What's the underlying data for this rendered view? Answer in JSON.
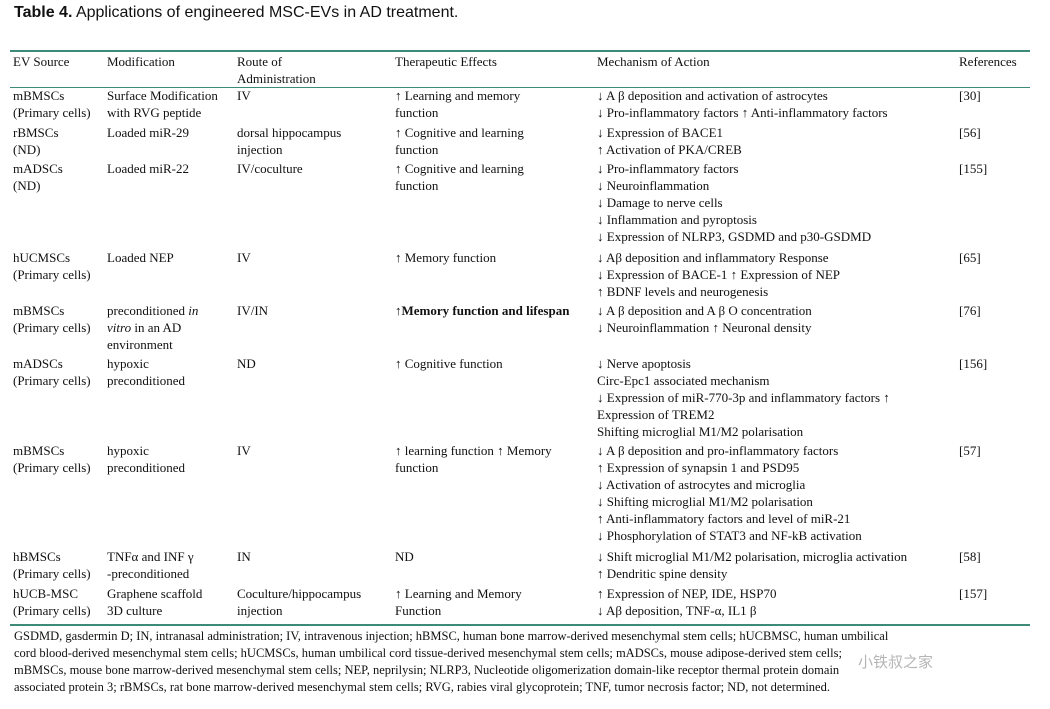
{
  "caption": {
    "label": "Table 4.",
    "text": "Applications of engineered MSC-EVs in AD treatment."
  },
  "headers": {
    "source": "EV Source",
    "modification": "Modification",
    "route": [
      "Route of",
      "Administration"
    ],
    "effects": "Therapeutic Effects",
    "mechanism": "Mechanism of Action",
    "references": "References"
  },
  "rows": [
    {
      "source": [
        "mBMSCs",
        "(Primary cells)"
      ],
      "modification": [
        "Surface Modification",
        "with RVG peptide"
      ],
      "route": [
        "IV"
      ],
      "effects": [
        "↑ Learning and memory",
        "function"
      ],
      "mechanism": [
        "↓ A β  deposition and activation of astrocytes",
        "↓ Pro-inflammatory factors  ↑ Anti-inflammatory factors"
      ],
      "ref": "[30]"
    },
    {
      "source": [
        "rBMSCs",
        "(ND)"
      ],
      "modification": [
        "Loaded miR-29"
      ],
      "route": [
        "dorsal hippocampus",
        "injection"
      ],
      "effects": [
        "↑ Cognitive and learning",
        "function"
      ],
      "mechanism": [
        "↓ Expression of BACE1",
        "↑ Activation of PKA/CREB"
      ],
      "ref": "[56]"
    },
    {
      "source": [
        "mADSCs",
        "(ND)"
      ],
      "modification": [
        "Loaded miR-22"
      ],
      "route": [
        "IV/coculture"
      ],
      "effects": [
        "↑ Cognitive and learning",
        "function"
      ],
      "mechanism": [
        "↓ Pro-inflammatory factors",
        "↓ Neuroinflammation",
        "↓ Damage to nerve cells",
        "↓ Inflammation and pyroptosis",
        "↓ Expression of NLRP3, GSDMD and p30-GSDMD"
      ],
      "ref": "[155]"
    },
    {
      "source": [
        "hUCMSCs",
        "(Primary cells)"
      ],
      "modification": [
        "Loaded NEP"
      ],
      "route": [
        "IV"
      ],
      "effects": [
        "↑ Memory function"
      ],
      "mechanism": [
        "↓ Aβ deposition and inflammatory Response",
        "↓ Expression of BACE-1  ↑ Expression of NEP",
        "↑ BDNF levels and neurogenesis"
      ],
      "ref": "[65]"
    },
    {
      "source": [
        "mBMSCs",
        "(Primary cells)"
      ],
      "modification_parts": {
        "pre": "preconditioned ",
        "italic1": "in",
        "italic2": "vitro",
        "post": " in an AD",
        "last": "environment"
      },
      "route": [
        "IV/IN"
      ],
      "effects_bold": "↑Memory function and lifespan",
      "mechanism": [
        "↓ A β  deposition and A β O concentration",
        "↓ Neuroinflammation  ↑ Neuronal density"
      ],
      "ref": "[76]"
    },
    {
      "source": [
        "mADSCs",
        "(Primary cells)"
      ],
      "modification": [
        "hypoxic",
        "preconditioned"
      ],
      "route": [
        "ND"
      ],
      "effects": [
        "↑ Cognitive function"
      ],
      "mechanism": [
        "↓ Nerve apoptosis",
        "Circ-Epc1 associated mechanism",
        "↓ Expression of miR-770-3p and inflammatory factors  ↑",
        "Expression of TREM2",
        "Shifting microglial M1/M2 polarisation"
      ],
      "ref": "[156]"
    },
    {
      "source": [
        "mBMSCs",
        "(Primary cells)"
      ],
      "modification": [
        "hypoxic",
        "preconditioned"
      ],
      "route": [
        "IV"
      ],
      "effects": [
        "↑ learning function  ↑ Memory",
        "function"
      ],
      "mechanism": [
        "↓ A β  deposition and pro-inflammatory factors",
        "↑ Expression of synapsin 1 and PSD95",
        "↓ Activation of astrocytes and microglia",
        "↓ Shifting microglial M1/M2 polarisation",
        "↑ Anti-inflammatory factors and level of miR-21",
        "↓ Phosphorylation of STAT3 and NF-kB activation"
      ],
      "ref": "[57]"
    },
    {
      "source": [
        "hBMSCs",
        "(Primary cells)"
      ],
      "modification": [
        "TNFα and INF γ",
        "-preconditioned"
      ],
      "route": [
        "IN"
      ],
      "effects": [
        "ND"
      ],
      "mechanism": [
        "↓ Shift microglial M1/M2 polarisation, microglia activation",
        "↑ Dendritic spine density"
      ],
      "ref": "[58]"
    },
    {
      "source": [
        "hUCB-MSC",
        "(Primary cells)"
      ],
      "modification": [
        "Graphene scaffold",
        "3D culture"
      ],
      "route": [
        "Coculture/hippocampus",
        "injection"
      ],
      "effects": [
        "↑ Learning and Memory",
        "Function"
      ],
      "mechanism": [
        "↑ Expression of NEP, IDE, HSP70",
        "↓ Aβ deposition, TNF-α, IL1 β"
      ],
      "ref": "[157]"
    }
  ],
  "footnote": [
    "GSDMD, gasdermin D; IN, intranasal administration; IV, intravenous injection; hBMSC, human bone marrow-derived mesenchymal stem cells; hUCBMSC, human umbilical",
    "cord blood-derived mesenchymal stem cells; hUCMSCs, human umbilical cord tissue-derived mesenchymal stem cells; mADSCs, mouse adipose-derived stem cells;",
    "mBMSCs, mouse bone marrow-derived mesenchymal stem cells; NEP, neprilysin; NLRP3, Nucleotide oligomerization domain-like receptor thermal protein domain",
    "associated protein 3; rBMSCs, rat bone marrow-derived mesenchymal stem cells; RVG, rabies viral glycoprotein; TNF, tumor necrosis factor; ND, not determined."
  ],
  "watermark": "小铁叔之家",
  "colors": {
    "rule": "#3d8a78",
    "text": "#111111"
  }
}
